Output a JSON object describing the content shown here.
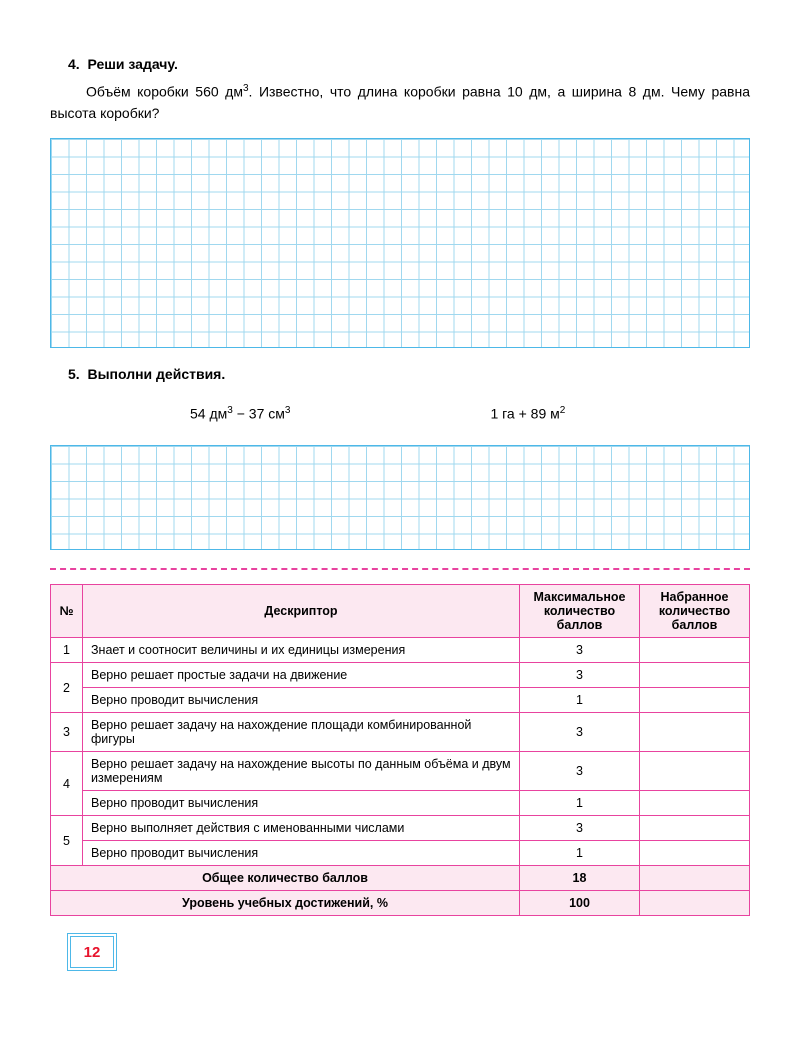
{
  "problem4": {
    "number": "4.",
    "title": "Реши задачу.",
    "body_html": "Объём коробки 560 дм<sup>3</sup>. Известно, что длина коробки равна 10 дм, а ширина 8 дм. Чему равна высота коробки?"
  },
  "problem5": {
    "number": "5.",
    "title": "Выполни действия.",
    "eq1_html": "54 дм<sup>3</sup> − 37 см<sup>3</sup>",
    "eq2_html": "1 га + 89 м<sup>2</sup>"
  },
  "rubric": {
    "headers": {
      "num": "№",
      "desc": "Дескриптор",
      "max": "Максимальное количество баллов",
      "got": "Набранное количество баллов"
    },
    "rows": [
      {
        "num": "1",
        "span": 1,
        "desc": "Знает и соотносит величины и их единицы измерения",
        "max": "3",
        "got": ""
      },
      {
        "num": "2",
        "span": 2,
        "desc": "Верно решает простые задачи на движение",
        "max": "3",
        "got": ""
      },
      {
        "num": "",
        "span": 0,
        "desc": "Верно проводит вычисления",
        "max": "1",
        "got": ""
      },
      {
        "num": "3",
        "span": 1,
        "desc": "Верно решает задачу на нахождение площади комбинированной фигуры",
        "max": "3",
        "got": ""
      },
      {
        "num": "4",
        "span": 2,
        "desc": "Верно решает задачу на нахождение высоты по данным объёма и двум измерениям",
        "max": "3",
        "got": ""
      },
      {
        "num": "",
        "span": 0,
        "desc": "Верно проводит вычисления",
        "max": "1",
        "got": ""
      },
      {
        "num": "5",
        "span": 2,
        "desc": "Верно выполняет действия с именованными числами",
        "max": "3",
        "got": ""
      },
      {
        "num": "",
        "span": 0,
        "desc": "Верно проводит вычисления",
        "max": "1",
        "got": ""
      }
    ],
    "totals": [
      {
        "label": "Общее количество баллов",
        "max": "18",
        "got": ""
      },
      {
        "label": "Уровень учебных достижений, %",
        "max": "100",
        "got": ""
      }
    ]
  },
  "page_number": "12",
  "colors": {
    "grid_line": "#a0d8ef",
    "grid_border": "#4db8e8",
    "accent_pink": "#e8439f",
    "header_bg": "#fce8f1",
    "page_num_color": "#e8142d"
  }
}
